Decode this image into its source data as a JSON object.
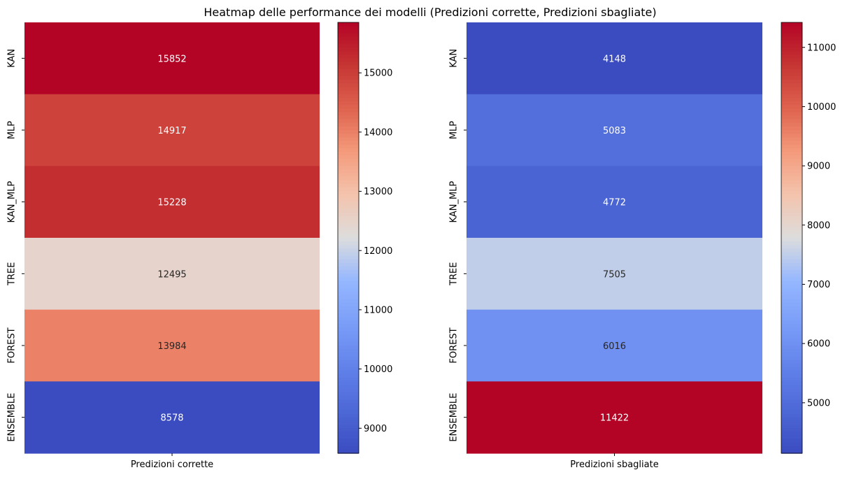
{
  "chart_data": {
    "type": "heatmap",
    "title": "Heatmap delle performance dei modelli (Predizioni corrette, Predizioni sbagliate)",
    "rows": [
      "KAN",
      "MLP",
      "KAN_MLP",
      "TREE",
      "FOREST",
      "ENSEMBLE"
    ],
    "colormap": "coolwarm",
    "grid": false,
    "panels": [
      {
        "xlabel": "Predizioni corrette",
        "values": [
          15852,
          14917,
          15228,
          12495,
          13984,
          8578
        ],
        "vmin": 8578,
        "vmax": 15852,
        "colorbar_ticks": [
          9000,
          10000,
          11000,
          12000,
          13000,
          14000,
          15000
        ]
      },
      {
        "xlabel": "Predizioni sbagliate",
        "values": [
          4148,
          5083,
          4772,
          7505,
          6016,
          11422
        ],
        "vmin": 4148,
        "vmax": 11422,
        "colorbar_ticks": [
          5000,
          6000,
          7000,
          8000,
          9000,
          10000,
          11000
        ]
      }
    ],
    "colors": {
      "low": "#3b4cc0",
      "mid": "#dddddd",
      "high": "#b40426",
      "label_dark": "#262626",
      "label_light": "#ffffff",
      "frame": "#000000"
    }
  }
}
